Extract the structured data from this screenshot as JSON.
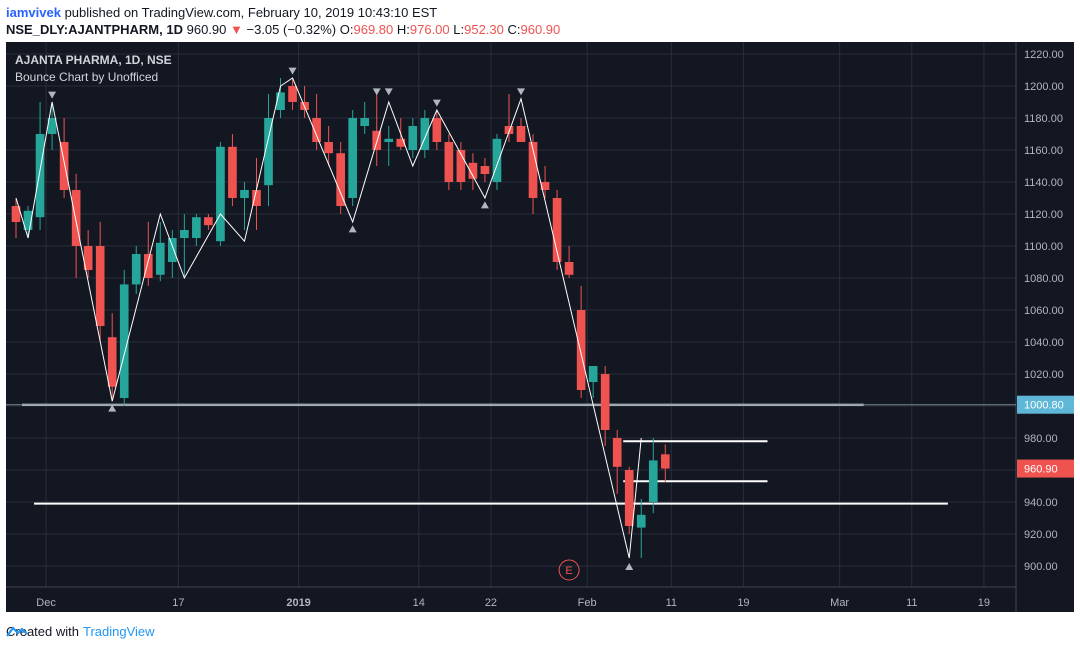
{
  "header": {
    "user": "iamvivek",
    "published": "published on TradingView.com, February 10, 2019 10:43:10 EST",
    "symbol": "NSE_DLY:AJANTPHARM, 1D",
    "price": "960.90",
    "change": "−3.05 (−0.32%)",
    "o_label": "O:",
    "o_value": "969.80",
    "h_label": "H:",
    "h_value": "976.00",
    "l_label": "L:",
    "l_value": "952.30",
    "c_label": "C:",
    "c_value": "960.90"
  },
  "legend": {
    "title": "AJANTA PHARMA, 1D, NSE",
    "subtitle": "Bounce Chart by Unofficed"
  },
  "footer": {
    "created": "Created with",
    "brand": "TradingView"
  },
  "colors": {
    "bg": "#131722",
    "grid": "#2a2e39",
    "up": "#26a69a",
    "down": "#ef5350",
    "text": "#b2b5be"
  },
  "chart_data": {
    "type": "candlestick",
    "ylim": [
      890,
      1225
    ],
    "yticks": [
      900,
      920,
      940,
      960,
      980,
      1000,
      1020,
      1040,
      1060,
      1080,
      1100,
      1120,
      1140,
      1160,
      1180,
      1200,
      1220
    ],
    "xticks": [
      {
        "label": "Dec",
        "i": 3
      },
      {
        "label": "17",
        "i": 14
      },
      {
        "label": "2019",
        "i": 24
      },
      {
        "label": "14",
        "i": 34
      },
      {
        "label": "22",
        "i": 40
      },
      {
        "label": "Feb",
        "i": 48
      },
      {
        "label": "11",
        "i": 55
      },
      {
        "label": "19",
        "i": 61
      },
      {
        "label": "Mar",
        "i": 69
      },
      {
        "label": "11",
        "i": 75
      },
      {
        "label": "19",
        "i": 81
      }
    ],
    "x_count": 84,
    "last_price_label": "960.90",
    "level_label": "1000.80",
    "candles": [
      {
        "o": 1125,
        "h": 1130,
        "l": 1105,
        "c": 1115
      },
      {
        "o": 1110,
        "h": 1125,
        "l": 1105,
        "c": 1122
      },
      {
        "o": 1118,
        "h": 1190,
        "l": 1110,
        "c": 1170
      },
      {
        "o": 1170,
        "h": 1190,
        "l": 1160,
        "c": 1180
      },
      {
        "o": 1165,
        "h": 1180,
        "l": 1130,
        "c": 1135
      },
      {
        "o": 1135,
        "h": 1145,
        "l": 1080,
        "c": 1100
      },
      {
        "o": 1100,
        "h": 1110,
        "l": 1080,
        "c": 1085
      },
      {
        "o": 1100,
        "h": 1115,
        "l": 1040,
        "c": 1050
      },
      {
        "o": 1043,
        "h": 1058,
        "l": 1003,
        "c": 1012
      },
      {
        "o": 1005,
        "h": 1085,
        "l": 1000,
        "c": 1076
      },
      {
        "o": 1076,
        "h": 1100,
        "l": 1070,
        "c": 1095
      },
      {
        "o": 1095,
        "h": 1115,
        "l": 1075,
        "c": 1080
      },
      {
        "o": 1082,
        "h": 1115,
        "l": 1078,
        "c": 1102
      },
      {
        "o": 1090,
        "h": 1110,
        "l": 1080,
        "c": 1105
      },
      {
        "o": 1105,
        "h": 1120,
        "l": 1080,
        "c": 1110
      },
      {
        "o": 1105,
        "h": 1120,
        "l": 1100,
        "c": 1118
      },
      {
        "o": 1118,
        "h": 1120,
        "l": 1110,
        "c": 1113
      },
      {
        "o": 1103,
        "h": 1165,
        "l": 1100,
        "c": 1162
      },
      {
        "o": 1162,
        "h": 1170,
        "l": 1125,
        "c": 1130
      },
      {
        "o": 1130,
        "h": 1140,
        "l": 1110,
        "c": 1135
      },
      {
        "o": 1135,
        "h": 1155,
        "l": 1110,
        "c": 1125
      },
      {
        "o": 1138,
        "h": 1195,
        "l": 1125,
        "c": 1180
      },
      {
        "o": 1185,
        "h": 1205,
        "l": 1180,
        "c": 1196
      },
      {
        "o": 1200,
        "h": 1205,
        "l": 1185,
        "c": 1190
      },
      {
        "o": 1190,
        "h": 1200,
        "l": 1180,
        "c": 1185
      },
      {
        "o": 1180,
        "h": 1195,
        "l": 1160,
        "c": 1165
      },
      {
        "o": 1165,
        "h": 1175,
        "l": 1150,
        "c": 1158
      },
      {
        "o": 1158,
        "h": 1165,
        "l": 1120,
        "c": 1125
      },
      {
        "o": 1130,
        "h": 1185,
        "l": 1125,
        "c": 1180
      },
      {
        "o": 1175,
        "h": 1190,
        "l": 1170,
        "c": 1180
      },
      {
        "o": 1172,
        "h": 1195,
        "l": 1150,
        "c": 1160
      },
      {
        "o": 1165,
        "h": 1175,
        "l": 1150,
        "c": 1167
      },
      {
        "o": 1167,
        "h": 1180,
        "l": 1160,
        "c": 1162
      },
      {
        "o": 1160,
        "h": 1180,
        "l": 1155,
        "c": 1175
      },
      {
        "o": 1160,
        "h": 1185,
        "l": 1155,
        "c": 1180
      },
      {
        "o": 1180,
        "h": 1185,
        "l": 1160,
        "c": 1165
      },
      {
        "o": 1165,
        "h": 1170,
        "l": 1135,
        "c": 1140
      },
      {
        "o": 1160,
        "h": 1165,
        "l": 1135,
        "c": 1140
      },
      {
        "o": 1152,
        "h": 1158,
        "l": 1135,
        "c": 1142
      },
      {
        "o": 1150,
        "h": 1155,
        "l": 1140,
        "c": 1145
      },
      {
        "o": 1140,
        "h": 1170,
        "l": 1135,
        "c": 1167
      },
      {
        "o": 1175,
        "h": 1195,
        "l": 1165,
        "c": 1170
      },
      {
        "o": 1175,
        "h": 1180,
        "l": 1165,
        "c": 1165
      },
      {
        "o": 1165,
        "h": 1170,
        "l": 1120,
        "c": 1130
      },
      {
        "o": 1140,
        "h": 1150,
        "l": 1130,
        "c": 1135
      },
      {
        "o": 1130,
        "h": 1135,
        "l": 1085,
        "c": 1090
      },
      {
        "o": 1090,
        "h": 1100,
        "l": 1080,
        "c": 1082
      },
      {
        "o": 1060,
        "h": 1075,
        "l": 1005,
        "c": 1010
      },
      {
        "o": 1015,
        "h": 1025,
        "l": 1005,
        "c": 1025
      },
      {
        "o": 1020,
        "h": 1025,
        "l": 975,
        "c": 985
      },
      {
        "o": 980,
        "h": 985,
        "l": 945,
        "c": 962
      },
      {
        "o": 960,
        "h": 962,
        "l": 920,
        "c": 925
      },
      {
        "o": 924,
        "h": 942,
        "l": 905,
        "c": 932
      },
      {
        "o": 940,
        "h": 980,
        "l": 933,
        "c": 966
      },
      {
        "o": 969.8,
        "h": 976,
        "l": 952.3,
        "c": 960.9
      }
    ],
    "zigzag": [
      {
        "i": 0,
        "v": 1130
      },
      {
        "i": 1,
        "v": 1105
      },
      {
        "i": 3,
        "v": 1190
      },
      {
        "i": 8,
        "v": 1003
      },
      {
        "i": 12,
        "v": 1120
      },
      {
        "i": 14,
        "v": 1080
      },
      {
        "i": 17,
        "v": 1120
      },
      {
        "i": 19,
        "v": 1103
      },
      {
        "i": 22,
        "v": 1200
      },
      {
        "i": 23,
        "v": 1205
      },
      {
        "i": 28,
        "v": 1115
      },
      {
        "i": 31,
        "v": 1190
      },
      {
        "i": 33,
        "v": 1150
      },
      {
        "i": 35,
        "v": 1185
      },
      {
        "i": 39,
        "v": 1130
      },
      {
        "i": 42,
        "v": 1192
      },
      {
        "i": 51,
        "v": 905
      },
      {
        "i": 52,
        "v": 980
      }
    ],
    "markers": [
      {
        "i": 3,
        "v": 1194,
        "dir": "down"
      },
      {
        "i": 8,
        "v": 999,
        "dir": "up"
      },
      {
        "i": 23,
        "v": 1209,
        "dir": "down"
      },
      {
        "i": 28,
        "v": 1111,
        "dir": "up"
      },
      {
        "i": 30,
        "v": 1196,
        "dir": "down"
      },
      {
        "i": 31,
        "v": 1196,
        "dir": "down"
      },
      {
        "i": 35,
        "v": 1189,
        "dir": "down"
      },
      {
        "i": 39,
        "v": 1126,
        "dir": "up"
      },
      {
        "i": 42,
        "v": 1196,
        "dir": "down"
      },
      {
        "i": 51,
        "v": 900,
        "dir": "up"
      }
    ],
    "hlines": [
      {
        "v": 1000.8,
        "i0": 1,
        "i1": 71
      },
      {
        "v": 939,
        "i0": 2,
        "i1": 78
      },
      {
        "v": 978,
        "i0": 51,
        "i1": 63
      },
      {
        "v": 953,
        "i0": 51,
        "i1": 63
      }
    ],
    "earnings_marker": {
      "label": "E",
      "i": 46
    }
  }
}
